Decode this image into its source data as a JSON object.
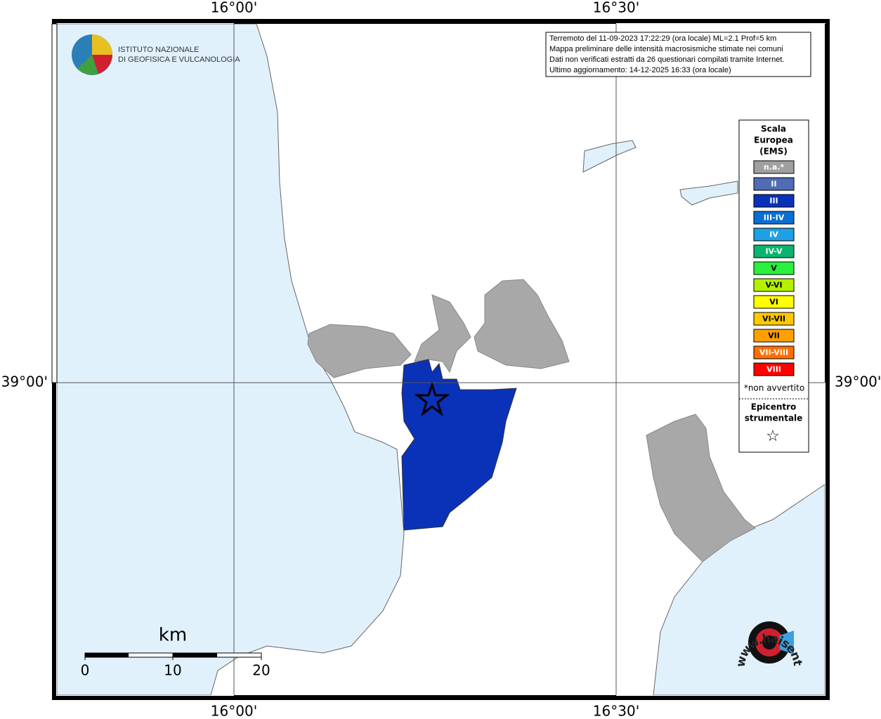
{
  "map": {
    "axis_labels": {
      "top": [
        "16°00'",
        "16°30'"
      ],
      "bottom": [
        "16°00'",
        "16°30'"
      ],
      "left": [
        "39°00'"
      ],
      "right": [
        "39°00'"
      ]
    },
    "info_box": [
      "Terremoto del 11-09-2023 17:22:29 (ora locale) ML=2.1 Prof=5 km",
      "Mappa preliminare delle intensità macrosismiche stimate nei comuni",
      "Dati non verificati estratti da 26 questionari compilati tramite Internet.",
      "Ultimo aggiornamento: 14-12-2025 16:33 (ora locale)"
    ],
    "logo": [
      "ISTITUTO NAZIONALE",
      "DI GEOFISICA E VULCANOLOGIA"
    ],
    "legend": {
      "title": [
        "Scala",
        "Europea",
        "(EMS)"
      ],
      "items": [
        {
          "label": "n.a.*",
          "color": "#a0a0a0"
        },
        {
          "label": "II",
          "color": "#4f6cb4"
        },
        {
          "label": "III",
          "color": "#0a32b8"
        },
        {
          "label": "III-IV",
          "color": "#0a6ed2"
        },
        {
          "label": "IV",
          "color": "#1ea0e6"
        },
        {
          "label": "IV-V",
          "color": "#0ab46e"
        },
        {
          "label": "V",
          "color": "#28f03c"
        },
        {
          "label": "V-VI",
          "color": "#b4f000"
        },
        {
          "label": "VI",
          "color": "#ffff00"
        },
        {
          "label": "VI-VII",
          "color": "#ffc800"
        },
        {
          "label": "VII",
          "color": "#ffa000"
        },
        {
          "label": "VII-VIII",
          "color": "#ff6e00"
        },
        {
          "label": "VIII",
          "color": "#ff0000"
        }
      ],
      "note": "*non avvertito",
      "epicenter": [
        "Epicentro",
        "strumentale"
      ],
      "epicenter_symbol": "☆"
    },
    "scale_bar": {
      "unit": "km",
      "ticks": [
        0,
        10,
        20
      ]
    },
    "brand": "www.haisentitoilterremoto.it"
  }
}
